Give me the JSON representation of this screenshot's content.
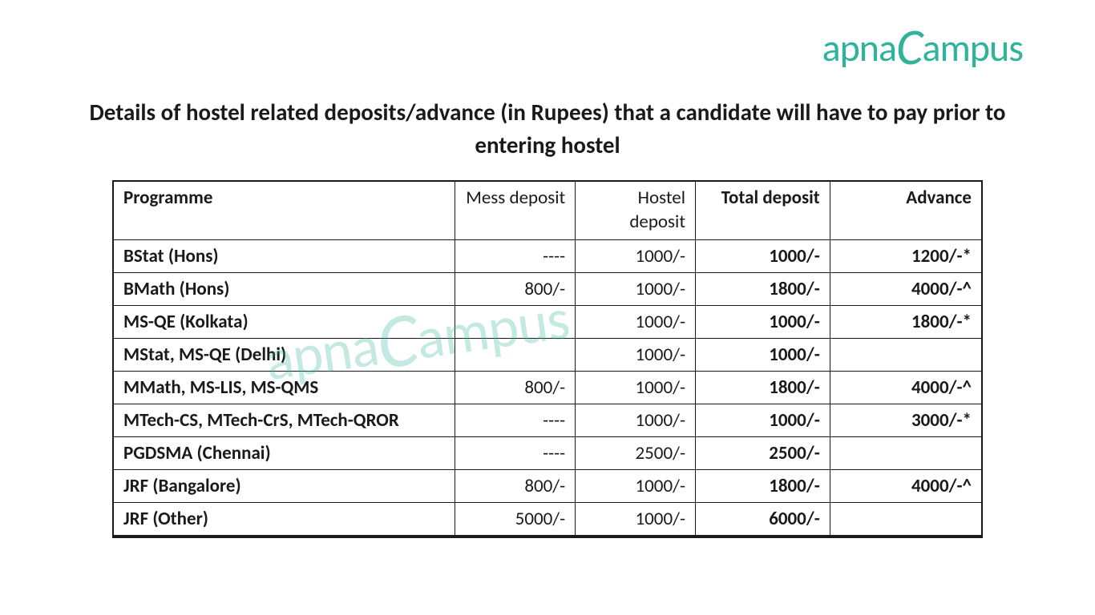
{
  "logo_text_pre": "apna",
  "logo_text_c": "C",
  "logo_text_post": "ampus",
  "title": "Details of hostel related deposits/advance (in Rupees) that a candidate will have to pay prior to entering hostel",
  "table": {
    "columns": [
      {
        "label": "Programme",
        "bold": true
      },
      {
        "label": "Mess deposit",
        "bold": false
      },
      {
        "label": "Hostel deposit",
        "bold": false
      },
      {
        "label": "Total deposit",
        "bold": true
      },
      {
        "label": "Advance",
        "bold": true
      }
    ],
    "rows": [
      {
        "programme": "BStat (Hons)",
        "mess": "----",
        "hostel": "1000/-",
        "total": "1000/-",
        "advance": "1200/-*"
      },
      {
        "programme": "BMath (Hons)",
        "mess": "800/-",
        "hostel": "1000/-",
        "total": "1800/-",
        "advance": "4000/-^"
      },
      {
        "programme": "MS-QE (Kolkata)",
        "mess": "",
        "hostel": "1000/-",
        "total": "1000/-",
        "advance": "1800/-*"
      },
      {
        "programme": "MStat, MS-QE (Delhi)",
        "mess": "",
        "hostel": "1000/-",
        "total": "1000/-",
        "advance": ""
      },
      {
        "programme": "MMath, MS-LIS, MS-QMS",
        "mess": "800/-",
        "hostel": "1000/-",
        "total": "1800/-",
        "advance": "4000/-^"
      },
      {
        "programme": "MTech-CS, MTech-CrS, MTech-QROR",
        "mess": "----",
        "hostel": "1000/-",
        "total": "1000/-",
        "advance": "3000/-*"
      },
      {
        "programme": "PGDSMA (Chennai)",
        "mess": "----",
        "hostel": "2500/-",
        "total": "2500/-",
        "advance": ""
      },
      {
        "programme": "JRF (Bangalore)",
        "mess": "800/-",
        "hostel": "1000/-",
        "total": "1800/-",
        "advance": "4000/-^"
      },
      {
        "programme": "JRF (Other)",
        "mess": "5000/-",
        "hostel": "1000/-",
        "total": "6000/-",
        "advance": ""
      }
    ]
  },
  "colors": {
    "brand": "#2fb39a",
    "text": "#1a1a1a",
    "background": "#ffffff"
  }
}
